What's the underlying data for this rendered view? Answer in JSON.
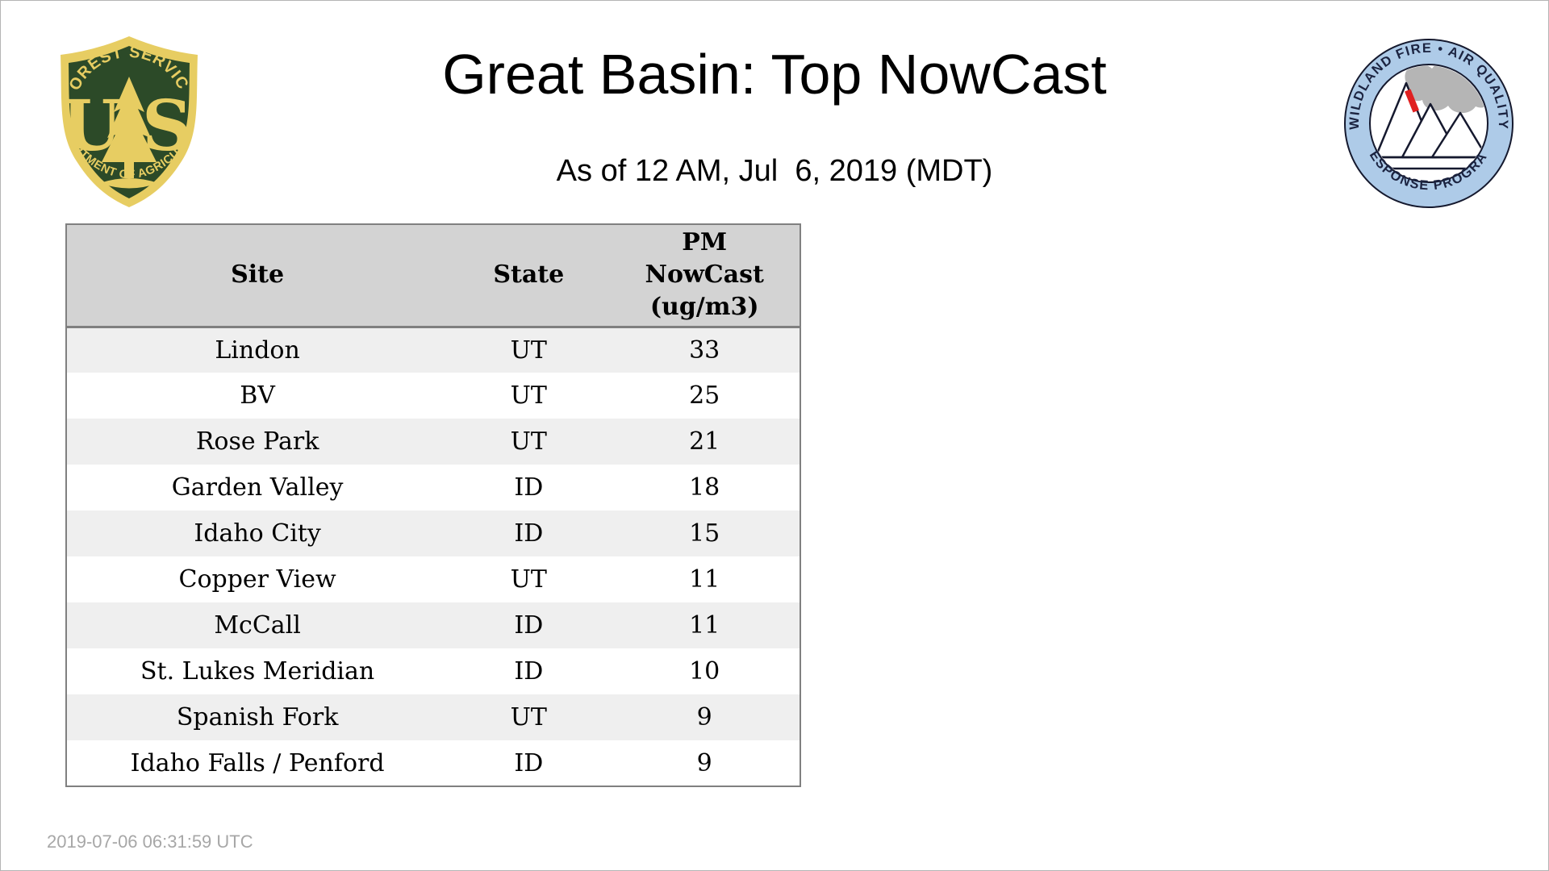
{
  "page": {
    "title": "Great Basin: Top NowCast",
    "subtitle": "As of 12 AM, Jul  6, 2019 (MDT)",
    "footer_timestamp": "2019-07-06 06:31:59 UTC"
  },
  "logos": {
    "usfs": {
      "arc_top": "FOREST SERVICE",
      "letter_u": "U",
      "letter_s": "S",
      "arc_bottom": "DEPARTMENT OF AGRICULTURE",
      "green": "#2c4a28",
      "gold": "#e7cd62"
    },
    "wfaqrp": {
      "arc_top": "WILDLAND FIRE • AIR QUALITY",
      "arc_bottom": "RESPONSE PROGRAM",
      "ring_blue": "#aecbe8",
      "text_navy": "#1b2340",
      "smoke_gray": "#b5b5b5",
      "flame_red": "#e02020"
    }
  },
  "table": {
    "columns": [
      {
        "label": "Site"
      },
      {
        "label": "State"
      },
      {
        "label": "PM\nNowCast\n(ug/m3)"
      }
    ],
    "rows": [
      {
        "site": "Lindon",
        "state": "UT",
        "value": "33"
      },
      {
        "site": "BV",
        "state": "UT",
        "value": "25"
      },
      {
        "site": "Rose Park",
        "state": "UT",
        "value": "21"
      },
      {
        "site": "Garden Valley",
        "state": "ID",
        "value": "18"
      },
      {
        "site": "Idaho City",
        "state": "ID",
        "value": "15"
      },
      {
        "site": "Copper View",
        "state": "UT",
        "value": "11"
      },
      {
        "site": "McCall",
        "state": "ID",
        "value": "11"
      },
      {
        "site": "St. Lukes Meridian",
        "state": "ID",
        "value": "10"
      },
      {
        "site": "Spanish Fork",
        "state": "UT",
        "value": "9"
      },
      {
        "site": "Idaho Falls / Penford",
        "state": "ID",
        "value": "9"
      }
    ],
    "style": {
      "header_bg": "#d3d3d3",
      "stripe_bg": "#efefef",
      "border": "#808080"
    }
  },
  "chart_data": {
    "type": "table",
    "title": "Great Basin: Top NowCast",
    "subtitle": "As of 12 AM, Jul  6, 2019 (MDT)",
    "columns": [
      "Site",
      "State",
      "PM NowCast (ug/m3)"
    ],
    "rows": [
      [
        "Lindon",
        "UT",
        33
      ],
      [
        "BV",
        "UT",
        25
      ],
      [
        "Rose Park",
        "UT",
        21
      ],
      [
        "Garden Valley",
        "ID",
        18
      ],
      [
        "Idaho City",
        "ID",
        15
      ],
      [
        "Copper View",
        "UT",
        11
      ],
      [
        "McCall",
        "ID",
        11
      ],
      [
        "St. Lukes Meridian",
        "ID",
        10
      ],
      [
        "Spanish Fork",
        "UT",
        9
      ],
      [
        "Idaho Falls / Penford",
        "ID",
        9
      ]
    ],
    "footnote": "2019-07-06 06:31:59 UTC"
  }
}
